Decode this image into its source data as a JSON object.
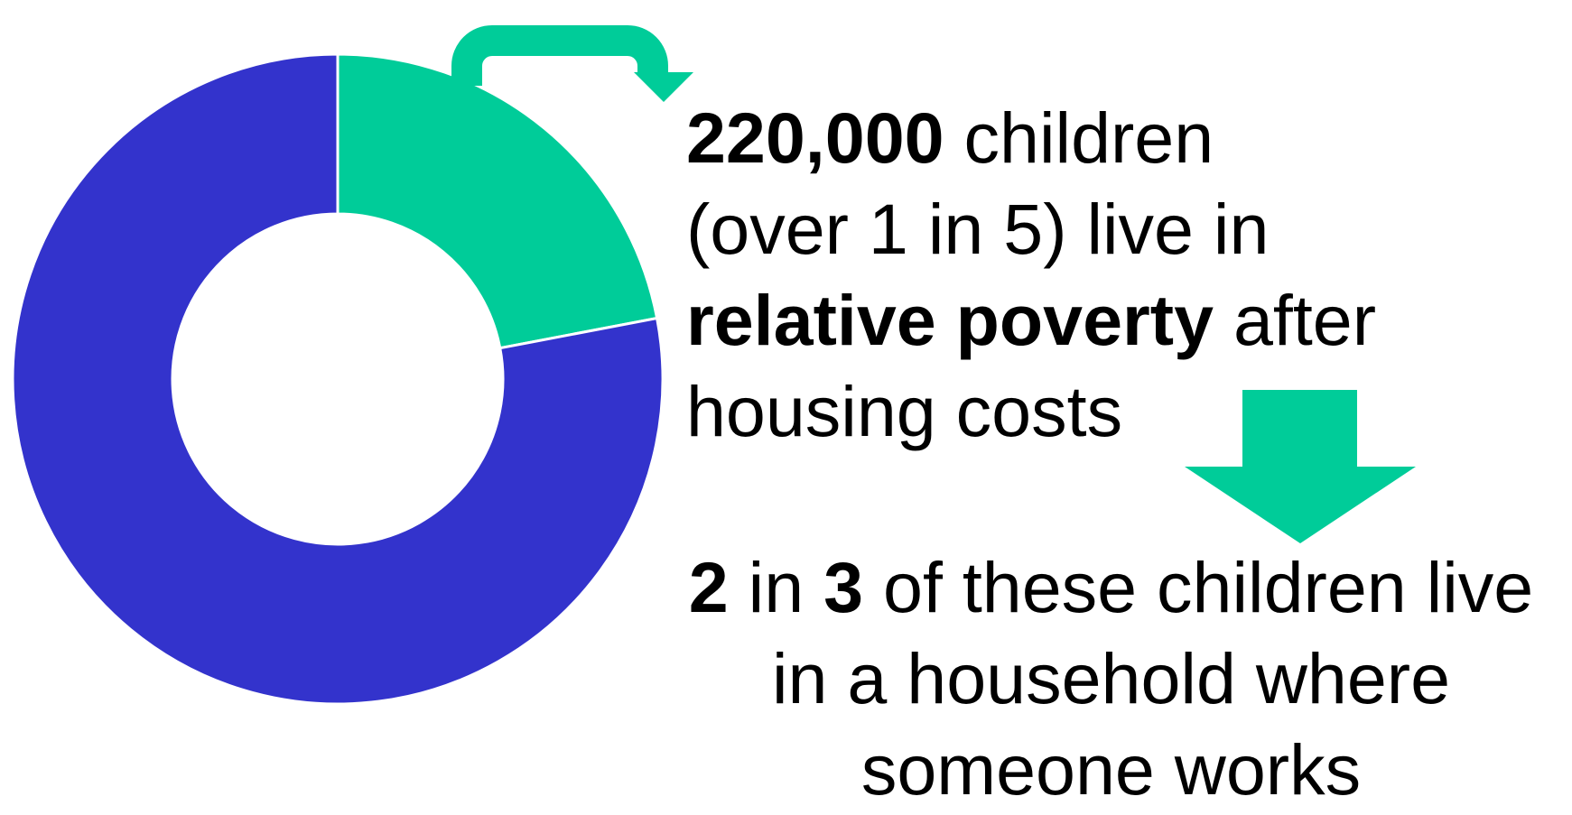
{
  "chart_data": {
    "type": "pie",
    "variant": "donut",
    "slices": [
      {
        "name": "",
        "value": 22,
        "color": "#00CC99"
      },
      {
        "name": "",
        "value": 78,
        "color": "#3333CC"
      }
    ]
  },
  "statement1": {
    "line1_bold": "220,000",
    "line1_rest": " children",
    "line2": "(over 1 in 5) live in",
    "line3_bold": "relative poverty",
    "line3_rest": " after",
    "line4": "housing costs"
  },
  "statement2": {
    "num1": "2",
    "mid": " in ",
    "num2": "3",
    "line1_rest": " of these children live",
    "line2": "in a household where",
    "line3": "someone works"
  },
  "colors": {
    "accent": "#00CC99",
    "primary": "#3333CC"
  },
  "icons": {
    "curved_arrow": "curved-arrow-icon",
    "down_arrow": "down-arrow-icon"
  }
}
